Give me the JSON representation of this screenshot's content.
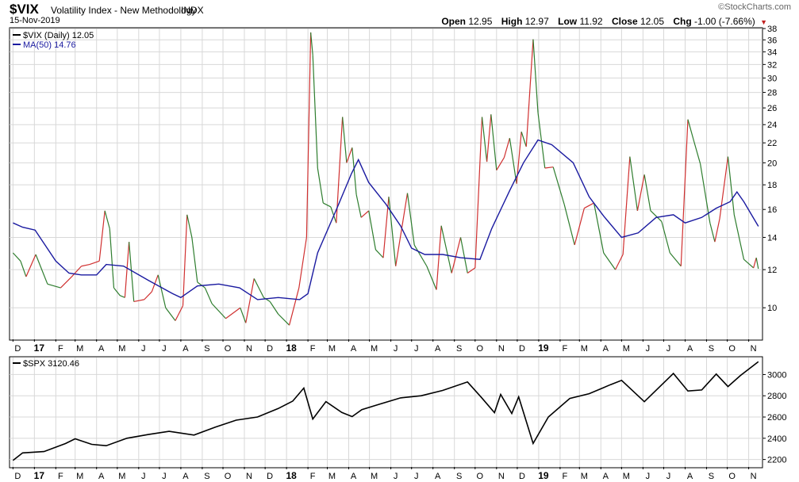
{
  "header": {
    "symbol": "$VIX",
    "name": "Volatility Index - New Methodology",
    "exchange": "INDX",
    "date": "15-Nov-2019",
    "brand": "©StockCharts.com",
    "open_label": "Open",
    "open": "12.95",
    "high_label": "High",
    "high": "12.97",
    "low_label": "Low",
    "low": "11.92",
    "close_label": "Close",
    "close": "12.05",
    "chg_label": "Chg",
    "chg": "-1.00 (-7.66%)"
  },
  "colors": {
    "vix_up": "#d03030",
    "vix_down": "#2e7d2e",
    "ma": "#1a1aa0",
    "spx": "#000000",
    "grid": "#d8d8d8"
  },
  "months": [
    "D",
    "17",
    "F",
    "M",
    "A",
    "M",
    "J",
    "J",
    "A",
    "S",
    "O",
    "N",
    "D",
    "18",
    "F",
    "M",
    "A",
    "M",
    "J",
    "J",
    "A",
    "S",
    "O",
    "N",
    "D",
    "19",
    "F",
    "M",
    "A",
    "M",
    "J",
    "J",
    "A",
    "S",
    "O",
    "N"
  ],
  "chart_data": [
    {
      "type": "line",
      "scale": "log",
      "legend": "top-left",
      "grid": true,
      "x": [
        "2016-12",
        "2017-01",
        "2017-02",
        "2017-03",
        "2017-04",
        "2017-05",
        "2017-06",
        "2017-07",
        "2017-08",
        "2017-09",
        "2017-10",
        "2017-11",
        "2017-12",
        "2018-01",
        "2018-02",
        "2018-03",
        "2018-04",
        "2018-05",
        "2018-06",
        "2018-07",
        "2018-08",
        "2018-09",
        "2018-10",
        "2018-11",
        "2018-12",
        "2019-01",
        "2019-02",
        "2019-03",
        "2019-04",
        "2019-05",
        "2019-06",
        "2019-07",
        "2019-08",
        "2019-09",
        "2019-10",
        "2019-11"
      ],
      "ylim": [
        8.6,
        38
      ],
      "yticks": [
        10,
        12,
        14,
        16,
        18,
        20,
        22,
        24,
        26,
        28,
        30,
        32,
        34,
        36,
        38
      ],
      "series": [
        {
          "name": "$VIX (Daily) 12.05",
          "points": [
            [
              "2016-12-01",
              13.0
            ],
            [
              "2016-12-12",
              12.5
            ],
            [
              "2016-12-20",
              11.6
            ],
            [
              "2017-01-03",
              12.9
            ],
            [
              "2017-01-20",
              11.2
            ],
            [
              "2017-02-08",
              11.0
            ],
            [
              "2017-02-24",
              11.6
            ],
            [
              "2017-03-10",
              12.2
            ],
            [
              "2017-03-22",
              12.3
            ],
            [
              "2017-04-05",
              12.5
            ],
            [
              "2017-04-13",
              15.9
            ],
            [
              "2017-04-20",
              14.6
            ],
            [
              "2017-04-26",
              11.0
            ],
            [
              "2017-05-05",
              10.6
            ],
            [
              "2017-05-12",
              10.5
            ],
            [
              "2017-05-18",
              13.7
            ],
            [
              "2017-05-25",
              10.3
            ],
            [
              "2017-06-09",
              10.4
            ],
            [
              "2017-06-20",
              10.8
            ],
            [
              "2017-06-29",
              11.7
            ],
            [
              "2017-07-10",
              10.0
            ],
            [
              "2017-07-24",
              9.4
            ],
            [
              "2017-08-04",
              10.1
            ],
            [
              "2017-08-10",
              15.6
            ],
            [
              "2017-08-17",
              14.0
            ],
            [
              "2017-08-25",
              11.3
            ],
            [
              "2017-09-05",
              11.0
            ],
            [
              "2017-09-15",
              10.2
            ],
            [
              "2017-10-05",
              9.5
            ],
            [
              "2017-10-26",
              10.0
            ],
            [
              "2017-11-03",
              9.3
            ],
            [
              "2017-11-15",
              11.5
            ],
            [
              "2017-11-29",
              10.5
            ],
            [
              "2017-12-08",
              10.3
            ],
            [
              "2017-12-20",
              9.7
            ],
            [
              "2018-01-05",
              9.2
            ],
            [
              "2018-01-19",
              11.0
            ],
            [
              "2018-01-30",
              14.0
            ],
            [
              "2018-02-05",
              37.3
            ],
            [
              "2018-02-08",
              33.5
            ],
            [
              "2018-02-15",
              19.5
            ],
            [
              "2018-02-23",
              16.5
            ],
            [
              "2018-03-06",
              16.2
            ],
            [
              "2018-03-14",
              15.0
            ],
            [
              "2018-03-23",
              24.9
            ],
            [
              "2018-03-29",
              20.0
            ],
            [
              "2018-04-06",
              21.5
            ],
            [
              "2018-04-12",
              17.2
            ],
            [
              "2018-04-19",
              15.4
            ],
            [
              "2018-04-30",
              15.9
            ],
            [
              "2018-05-10",
              13.2
            ],
            [
              "2018-05-21",
              12.7
            ],
            [
              "2018-05-29",
              17.0
            ],
            [
              "2018-06-08",
              12.2
            ],
            [
              "2018-06-25",
              17.3
            ],
            [
              "2018-07-05",
              13.5
            ],
            [
              "2018-07-23",
              12.2
            ],
            [
              "2018-08-06",
              10.9
            ],
            [
              "2018-08-13",
              14.8
            ],
            [
              "2018-08-28",
              11.8
            ],
            [
              "2018-09-10",
              14.0
            ],
            [
              "2018-09-20",
              11.8
            ],
            [
              "2018-10-01",
              12.1
            ],
            [
              "2018-10-11",
              24.9
            ],
            [
              "2018-10-18",
              20.1
            ],
            [
              "2018-10-24",
              25.2
            ],
            [
              "2018-11-01",
              19.3
            ],
            [
              "2018-11-12",
              20.5
            ],
            [
              "2018-11-20",
              22.5
            ],
            [
              "2018-11-30",
              18.1
            ],
            [
              "2018-12-07",
              23.2
            ],
            [
              "2018-12-14",
              21.6
            ],
            [
              "2018-12-24",
              36.1
            ],
            [
              "2018-12-31",
              25.4
            ],
            [
              "2019-01-10",
              19.5
            ],
            [
              "2019-01-22",
              19.6
            ],
            [
              "2019-02-07",
              16.4
            ],
            [
              "2019-02-22",
              13.5
            ],
            [
              "2019-03-08",
              16.1
            ],
            [
              "2019-03-22",
              16.5
            ],
            [
              "2019-04-05",
              13.0
            ],
            [
              "2019-04-22",
              12.0
            ],
            [
              "2019-05-03",
              12.9
            ],
            [
              "2019-05-13",
              20.6
            ],
            [
              "2019-05-24",
              15.9
            ],
            [
              "2019-06-03",
              18.9
            ],
            [
              "2019-06-12",
              15.9
            ],
            [
              "2019-06-28",
              15.1
            ],
            [
              "2019-07-10",
              13.0
            ],
            [
              "2019-07-26",
              12.2
            ],
            [
              "2019-08-05",
              24.6
            ],
            [
              "2019-08-14",
              22.1
            ],
            [
              "2019-08-23",
              19.9
            ],
            [
              "2019-09-06",
              15.0
            ],
            [
              "2019-09-13",
              13.7
            ],
            [
              "2019-09-20",
              15.3
            ],
            [
              "2019-10-02",
              20.6
            ],
            [
              "2019-10-11",
              15.6
            ],
            [
              "2019-10-25",
              12.6
            ],
            [
              "2019-11-08",
              12.1
            ],
            [
              "2019-11-12",
              12.7
            ],
            [
              "2019-11-15",
              12.05
            ]
          ]
        },
        {
          "name": "MA(50) 14.76",
          "points": [
            [
              "2016-12-01",
              15.0
            ],
            [
              "2016-12-15",
              14.7
            ],
            [
              "2017-01-02",
              14.5
            ],
            [
              "2017-01-15",
              13.6
            ],
            [
              "2017-02-01",
              12.5
            ],
            [
              "2017-02-20",
              11.8
            ],
            [
              "2017-03-10",
              11.7
            ],
            [
              "2017-04-01",
              11.7
            ],
            [
              "2017-04-15",
              12.3
            ],
            [
              "2017-05-10",
              12.2
            ],
            [
              "2017-06-15",
              11.4
            ],
            [
              "2017-07-20",
              10.7
            ],
            [
              "2017-08-01",
              10.5
            ],
            [
              "2017-08-25",
              11.1
            ],
            [
              "2017-09-25",
              11.2
            ],
            [
              "2017-10-25",
              11.0
            ],
            [
              "2017-11-20",
              10.4
            ],
            [
              "2017-12-20",
              10.5
            ],
            [
              "2018-01-20",
              10.4
            ],
            [
              "2018-02-01",
              10.7
            ],
            [
              "2018-02-15",
              13.0
            ],
            [
              "2018-03-15",
              16.1
            ],
            [
              "2018-04-05",
              19.0
            ],
            [
              "2018-04-15",
              20.3
            ],
            [
              "2018-04-30",
              18.2
            ],
            [
              "2018-05-25",
              16.4
            ],
            [
              "2018-06-15",
              14.8
            ],
            [
              "2018-07-01",
              13.3
            ],
            [
              "2018-07-20",
              12.9
            ],
            [
              "2018-08-15",
              12.9
            ],
            [
              "2018-09-10",
              12.7
            ],
            [
              "2018-10-08",
              12.6
            ],
            [
              "2018-10-25",
              14.6
            ],
            [
              "2018-11-20",
              17.5
            ],
            [
              "2018-12-10",
              20.0
            ],
            [
              "2018-12-31",
              22.3
            ],
            [
              "2019-01-20",
              21.8
            ],
            [
              "2019-02-20",
              20.0
            ],
            [
              "2019-03-15",
              17.0
            ],
            [
              "2019-04-05",
              15.5
            ],
            [
              "2019-05-01",
              14.0
            ],
            [
              "2019-05-25",
              14.3
            ],
            [
              "2019-06-20",
              15.4
            ],
            [
              "2019-07-15",
              15.6
            ],
            [
              "2019-08-01",
              15.0
            ],
            [
              "2019-08-25",
              15.4
            ],
            [
              "2019-09-15",
              16.1
            ],
            [
              "2019-10-05",
              16.6
            ],
            [
              "2019-10-15",
              17.4
            ],
            [
              "2019-10-25",
              16.6
            ],
            [
              "2019-11-15",
              14.76
            ]
          ]
        }
      ]
    },
    {
      "type": "line",
      "legend": "top-left",
      "grid": true,
      "ylim": [
        2130,
        3160
      ],
      "yticks": [
        2200,
        2400,
        2600,
        2800,
        3000
      ],
      "series": [
        {
          "name": "$SPX 3120.46",
          "points": [
            [
              "2016-12-01",
              2191
            ],
            [
              "2016-12-15",
              2262
            ],
            [
              "2017-01-15",
              2275
            ],
            [
              "2017-02-15",
              2350
            ],
            [
              "2017-03-01",
              2395
            ],
            [
              "2017-03-25",
              2343
            ],
            [
              "2017-04-15",
              2330
            ],
            [
              "2017-05-15",
              2400
            ],
            [
              "2017-06-15",
              2435
            ],
            [
              "2017-07-15",
              2465
            ],
            [
              "2017-08-20",
              2430
            ],
            [
              "2017-09-20",
              2505
            ],
            [
              "2017-10-20",
              2570
            ],
            [
              "2017-11-20",
              2600
            ],
            [
              "2017-12-20",
              2680
            ],
            [
              "2018-01-10",
              2750
            ],
            [
              "2018-01-26",
              2873
            ],
            [
              "2018-02-08",
              2581
            ],
            [
              "2018-02-27",
              2745
            ],
            [
              "2018-03-22",
              2643
            ],
            [
              "2018-04-06",
              2604
            ],
            [
              "2018-04-20",
              2670
            ],
            [
              "2018-05-15",
              2720
            ],
            [
              "2018-06-15",
              2780
            ],
            [
              "2018-07-15",
              2800
            ],
            [
              "2018-08-15",
              2850
            ],
            [
              "2018-09-20",
              2930
            ],
            [
              "2018-10-10",
              2785
            ],
            [
              "2018-10-29",
              2641
            ],
            [
              "2018-11-07",
              2813
            ],
            [
              "2018-11-23",
              2633
            ],
            [
              "2018-12-03",
              2790
            ],
            [
              "2018-12-24",
              2351
            ],
            [
              "2019-01-15",
              2600
            ],
            [
              "2019-02-15",
              2775
            ],
            [
              "2019-03-15",
              2820
            ],
            [
              "2019-04-15",
              2905
            ],
            [
              "2019-05-01",
              2945
            ],
            [
              "2019-06-03",
              2744
            ],
            [
              "2019-07-15",
              3010
            ],
            [
              "2019-08-05",
              2845
            ],
            [
              "2019-08-25",
              2855
            ],
            [
              "2019-09-15",
              3005
            ],
            [
              "2019-10-02",
              2887
            ],
            [
              "2019-10-20",
              2990
            ],
            [
              "2019-11-15",
              3120.46
            ]
          ]
        }
      ]
    }
  ]
}
